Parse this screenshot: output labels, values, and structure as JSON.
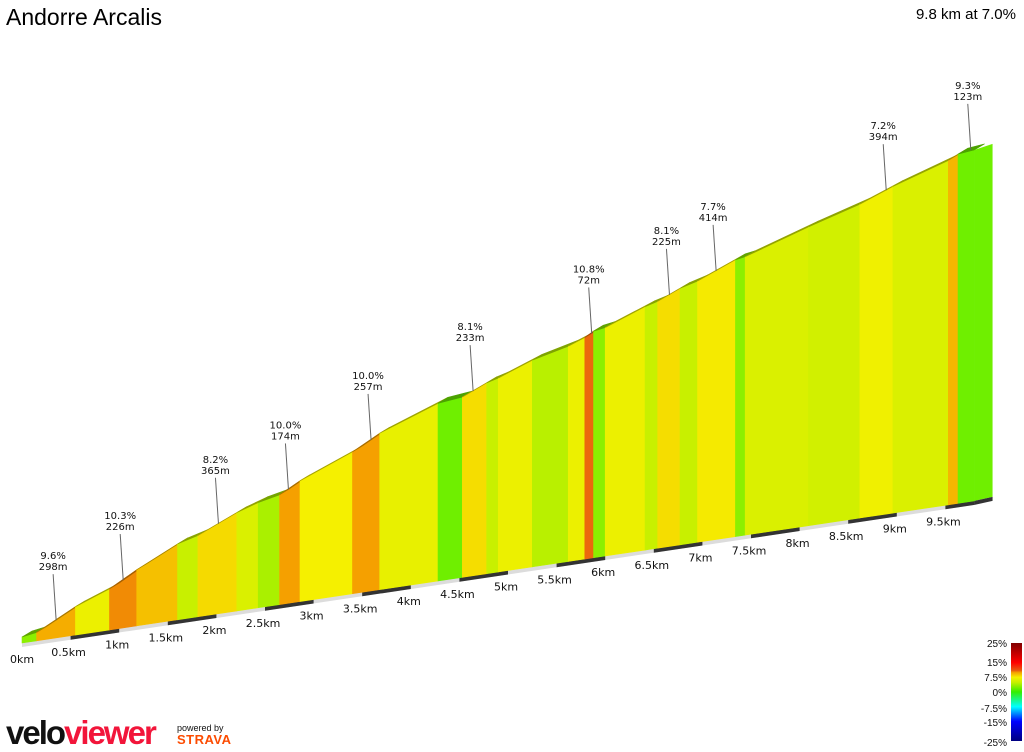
{
  "header": {
    "title": "Andorre Arcalis",
    "summary": "9.8 km at 7.0%"
  },
  "branding": {
    "logo_part1": "velo",
    "logo_part2": "viewer",
    "powered_by": "powered by",
    "strava": "STRAVA"
  },
  "chart_data": {
    "type": "area",
    "title": "Andorre Arcalis",
    "xlabel": "",
    "ylabel": "",
    "xlim": [
      0,
      9.8
    ],
    "x_ticks": [
      "0km",
      "0.5km",
      "1km",
      "1.5km",
      "2km",
      "2.5km",
      "3km",
      "3.5km",
      "4km",
      "4.5km",
      "5km",
      "5.5km",
      "6km",
      "6.5km",
      "7km",
      "7.5km",
      "8km",
      "8.5km",
      "9km",
      "9.5km"
    ],
    "segments": [
      {
        "start_km": 0,
        "end_km": 0.15,
        "gradient": 3
      },
      {
        "start_km": 0.15,
        "end_km": 0.55,
        "gradient": 9.6
      },
      {
        "start_km": 0.55,
        "end_km": 0.9,
        "gradient": 7
      },
      {
        "start_km": 0.9,
        "end_km": 1.18,
        "gradient": 10.3
      },
      {
        "start_km": 1.18,
        "end_km": 1.6,
        "gradient": 9
      },
      {
        "start_km": 1.6,
        "end_km": 1.81,
        "gradient": 5
      },
      {
        "start_km": 1.81,
        "end_km": 2.21,
        "gradient": 8.2
      },
      {
        "start_km": 2.21,
        "end_km": 2.43,
        "gradient": 6
      },
      {
        "start_km": 2.43,
        "end_km": 2.65,
        "gradient": 4
      },
      {
        "start_km": 2.65,
        "end_km": 2.86,
        "gradient": 10
      },
      {
        "start_km": 2.86,
        "end_km": 3.4,
        "gradient": 7.5
      },
      {
        "start_km": 3.4,
        "end_km": 3.68,
        "gradient": 10
      },
      {
        "start_km": 3.68,
        "end_km": 4.28,
        "gradient": 6.8
      },
      {
        "start_km": 4.28,
        "end_km": 4.53,
        "gradient": 2
      },
      {
        "start_km": 4.53,
        "end_km": 4.78,
        "gradient": 8.1
      },
      {
        "start_km": 4.78,
        "end_km": 4.9,
        "gradient": 5
      },
      {
        "start_km": 4.9,
        "end_km": 5.25,
        "gradient": 7
      },
      {
        "start_km": 5.25,
        "end_km": 5.62,
        "gradient": 4.5
      },
      {
        "start_km": 5.62,
        "end_km": 5.79,
        "gradient": 7
      },
      {
        "start_km": 5.79,
        "end_km": 5.88,
        "gradient": 10.8
      },
      {
        "start_km": 5.88,
        "end_km": 6.0,
        "gradient": 3
      },
      {
        "start_km": 6.0,
        "end_km": 6.41,
        "gradient": 7
      },
      {
        "start_km": 6.41,
        "end_km": 6.54,
        "gradient": 5
      },
      {
        "start_km": 6.54,
        "end_km": 6.77,
        "gradient": 8.1
      },
      {
        "start_km": 6.77,
        "end_km": 6.95,
        "gradient": 5
      },
      {
        "start_km": 6.95,
        "end_km": 7.34,
        "gradient": 7.7
      },
      {
        "start_km": 7.34,
        "end_km": 7.44,
        "gradient": 3
      },
      {
        "start_km": 7.44,
        "end_km": 8.09,
        "gradient": 6
      },
      {
        "start_km": 8.09,
        "end_km": 8.62,
        "gradient": 5.5
      },
      {
        "start_km": 8.62,
        "end_km": 8.96,
        "gradient": 7.2
      },
      {
        "start_km": 8.96,
        "end_km": 9.53,
        "gradient": 6
      },
      {
        "start_km": 9.53,
        "end_km": 9.63,
        "gradient": 9.3
      },
      {
        "start_km": 9.63,
        "end_km": 9.8,
        "gradient": 2
      }
    ],
    "annotations": [
      {
        "km": 0.31,
        "gradient": "9.6%",
        "length": "298m"
      },
      {
        "km": 1.0,
        "gradient": "10.3%",
        "length": "226m"
      },
      {
        "km": 1.98,
        "gradient": "8.2%",
        "length": "365m"
      },
      {
        "km": 2.7,
        "gradient": "10.0%",
        "length": "174m"
      },
      {
        "km": 3.55,
        "gradient": "10.0%",
        "length": "257m"
      },
      {
        "km": 4.6,
        "gradient": "8.1%",
        "length": "233m"
      },
      {
        "km": 5.82,
        "gradient": "10.8%",
        "length": "72m"
      },
      {
        "km": 6.62,
        "gradient": "8.1%",
        "length": "225m"
      },
      {
        "km": 7.1,
        "gradient": "7.7%",
        "length": "414m"
      },
      {
        "km": 8.85,
        "gradient": "7.2%",
        "length": "394m"
      },
      {
        "km": 9.72,
        "gradient": "9.3%",
        "length": "123m"
      }
    ],
    "legend": {
      "placement": "bottom-right",
      "labels": [
        "25%",
        "15%",
        "7.5%",
        "0%",
        "-7.5%",
        "-15%",
        "-25%"
      ],
      "colorscale": [
        {
          "g": -25,
          "color": "#000080"
        },
        {
          "g": -15,
          "color": "#0000ff"
        },
        {
          "g": -7.5,
          "color": "#00ffff"
        },
        {
          "g": 0,
          "color": "#33ee00"
        },
        {
          "g": 5,
          "color": "#c8f000"
        },
        {
          "g": 7.5,
          "color": "#f5f000"
        },
        {
          "g": 10,
          "color": "#f5a000"
        },
        {
          "g": 11,
          "color": "#e85a10"
        },
        {
          "g": 15,
          "color": "#ff0000"
        },
        {
          "g": 25,
          "color": "#800000"
        }
      ]
    }
  }
}
